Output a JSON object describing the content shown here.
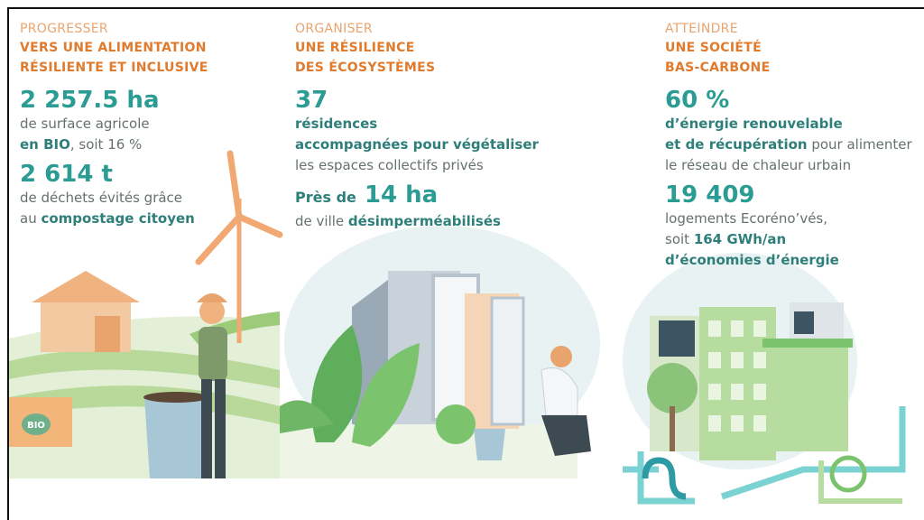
{
  "columns": [
    {
      "kicker": "PROGRESSER",
      "heading": [
        "VERS UNE ALIMENTATION",
        "RÉSILIENTE ET INCLUSIVE"
      ],
      "stats": [
        {
          "figure": "2 257.5 ha",
          "lines": [
            [
              {
                "text": "de surface agricole"
              }
            ],
            [
              {
                "text": "en BIO",
                "bold": true
              },
              {
                "text": ", soit 16 %"
              }
            ]
          ]
        },
        {
          "figure": "2 614 t",
          "lines": [
            [
              {
                "text": "de déchets évités grâce"
              }
            ],
            [
              {
                "text": "au "
              },
              {
                "text": "compostage citoyen",
                "bold": true
              }
            ]
          ]
        }
      ],
      "badge": "BIO"
    },
    {
      "kicker": "ORGANISER",
      "heading": [
        "UNE RÉSILIENCE",
        "DES ÉCOSYSTÈMES"
      ],
      "stats": [
        {
          "figure": "37",
          "lines": [
            [
              {
                "text": "résidences",
                "bold": true
              }
            ],
            [
              {
                "text": "accompagnées pour végétaliser",
                "bold": true
              }
            ],
            [
              {
                "text": "les espaces collectifs privés"
              }
            ]
          ]
        },
        {
          "prefix": "Près de",
          "figure": "14 ha",
          "lines": [
            [
              {
                "text": "de ville "
              },
              {
                "text": "désimperméabilisés",
                "bold": true
              }
            ]
          ]
        }
      ]
    },
    {
      "kicker": "ATTEINDRE",
      "heading": [
        "UNE SOCIÉTÉ",
        "BAS-CARBONE"
      ],
      "stats": [
        {
          "figure": "60 %",
          "lines": [
            [
              {
                "text": "d’énergie renouvelable",
                "bold": true
              }
            ],
            [
              {
                "text": "et de récupération",
                "bold": true
              },
              {
                "text": " pour alimenter"
              }
            ],
            [
              {
                "text": "le réseau de chaleur urbain"
              }
            ]
          ]
        },
        {
          "figure": "19 409",
          "lines": [
            [
              {
                "text": "logements Ecoréno’vés,"
              }
            ],
            [
              {
                "text": "soit "
              },
              {
                "text": "164 GWh/an",
                "bold": true
              }
            ],
            [
              {
                "text": "d’économies d’énergie",
                "bold": true
              }
            ]
          ]
        }
      ]
    }
  ]
}
